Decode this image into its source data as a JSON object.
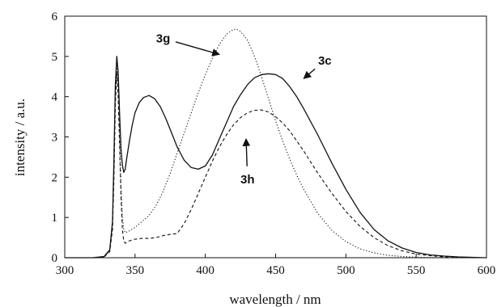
{
  "chart_data": {
    "type": "line",
    "xlabel": "wavelength / nm",
    "ylabel": "intensity / a.u.",
    "xlim": [
      300,
      600
    ],
    "ylim": [
      0,
      6
    ],
    "xticks": [
      "300",
      "350",
      "400",
      "450",
      "500",
      "550",
      "600"
    ],
    "yticks": [
      "0",
      "1",
      "2",
      "3",
      "4",
      "5",
      "6"
    ],
    "grid": false,
    "legend": "none",
    "series": [
      {
        "name": "3c",
        "style": "solid",
        "color": "#111111",
        "x": [
          300,
          320,
          328,
          332,
          334,
          335,
          336,
          337,
          338,
          339,
          340,
          341,
          342,
          343,
          344,
          346,
          348,
          350,
          353,
          356,
          360,
          364,
          368,
          372,
          376,
          380,
          385,
          390,
          395,
          400,
          405,
          410,
          415,
          420,
          425,
          430,
          435,
          440,
          445,
          450,
          455,
          460,
          465,
          470,
          480,
          490,
          500,
          510,
          520,
          530,
          540,
          550,
          560,
          570,
          580,
          590,
          600
        ],
        "y": [
          0.0,
          0.0,
          0.03,
          0.2,
          0.9,
          2.5,
          4.3,
          5.0,
          4.6,
          3.6,
          2.7,
          2.3,
          2.12,
          2.2,
          2.45,
          2.9,
          3.3,
          3.6,
          3.85,
          3.98,
          4.03,
          3.95,
          3.75,
          3.45,
          3.1,
          2.75,
          2.42,
          2.24,
          2.2,
          2.28,
          2.55,
          2.95,
          3.35,
          3.75,
          4.05,
          4.3,
          4.47,
          4.55,
          4.57,
          4.55,
          4.45,
          4.25,
          4.0,
          3.7,
          3.05,
          2.35,
          1.7,
          1.13,
          0.7,
          0.42,
          0.24,
          0.13,
          0.07,
          0.04,
          0.02,
          0.01,
          0.0
        ]
      },
      {
        "name": "3g",
        "style": "dotted",
        "color": "#111111",
        "x": [
          300,
          320,
          328,
          332,
          334,
          335,
          336,
          337,
          338,
          339,
          340,
          341,
          342,
          343,
          345,
          350,
          355,
          360,
          365,
          370,
          375,
          380,
          385,
          390,
          395,
          400,
          405,
          410,
          415,
          420,
          422,
          425,
          430,
          435,
          440,
          445,
          450,
          455,
          460,
          465,
          470,
          480,
          490,
          500,
          510,
          520,
          530,
          540,
          550,
          560,
          570,
          580,
          590,
          600
        ],
        "y": [
          0.0,
          0.0,
          0.02,
          0.15,
          0.8,
          2.2,
          4.0,
          4.8,
          4.3,
          3.1,
          1.8,
          1.0,
          0.7,
          0.62,
          0.65,
          0.75,
          0.9,
          1.05,
          1.3,
          1.65,
          2.1,
          2.6,
          3.1,
          3.6,
          4.1,
          4.55,
          4.95,
          5.3,
          5.55,
          5.67,
          5.68,
          5.62,
          5.4,
          5.0,
          4.5,
          3.95,
          3.4,
          2.9,
          2.45,
          2.05,
          1.7,
          1.1,
          0.68,
          0.4,
          0.22,
          0.12,
          0.06,
          0.03,
          0.015,
          0.005,
          0.0,
          0.0,
          0.0,
          0.0
        ]
      },
      {
        "name": "3h",
        "style": "dashed",
        "color": "#111111",
        "x": [
          300,
          320,
          328,
          332,
          334,
          335,
          336,
          337,
          338,
          339,
          340,
          341,
          342,
          343,
          344,
          346,
          350,
          355,
          360,
          365,
          370,
          375,
          380,
          385,
          390,
          395,
          400,
          405,
          410,
          415,
          420,
          425,
          430,
          435,
          440,
          445,
          450,
          455,
          460,
          465,
          470,
          480,
          490,
          500,
          510,
          520,
          530,
          540,
          550,
          560,
          570,
          580,
          590,
          600
        ],
        "y": [
          0.0,
          0.0,
          0.02,
          0.15,
          0.7,
          2.0,
          3.8,
          4.6,
          4.0,
          2.8,
          1.5,
          0.7,
          0.42,
          0.36,
          0.38,
          0.42,
          0.46,
          0.48,
          0.48,
          0.5,
          0.55,
          0.58,
          0.6,
          0.85,
          1.2,
          1.6,
          2.0,
          2.4,
          2.75,
          3.05,
          3.3,
          3.48,
          3.6,
          3.66,
          3.67,
          3.62,
          3.5,
          3.35,
          3.15,
          2.9,
          2.65,
          2.1,
          1.6,
          1.15,
          0.78,
          0.5,
          0.3,
          0.17,
          0.09,
          0.05,
          0.02,
          0.01,
          0.0,
          0.0
        ]
      }
    ],
    "annotations": [
      {
        "text": "3g",
        "x": 370,
        "y": 5.45,
        "arrow_to": [
          410,
          5.05
        ]
      },
      {
        "text": "3c",
        "x": 485,
        "y": 4.9,
        "arrow_to": [
          470,
          4.45
        ]
      },
      {
        "text": "3h",
        "x": 430,
        "y": 1.95,
        "arrow_to": [
          429,
          2.95
        ]
      }
    ]
  }
}
